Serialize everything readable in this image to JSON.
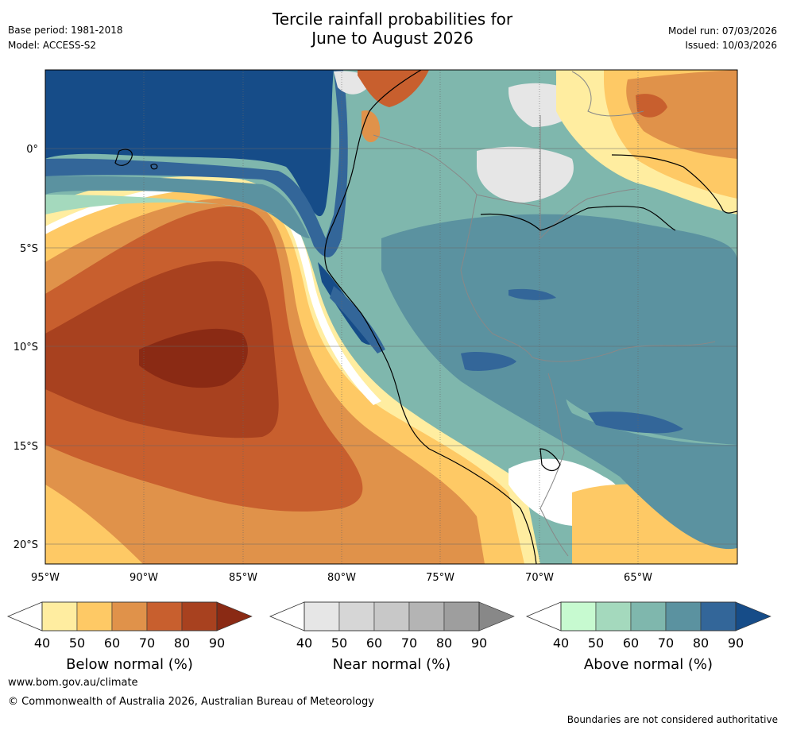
{
  "header": {
    "title_line1": "Tercile rainfall probabilities for",
    "title_line2": "June to August 2026",
    "base_period": "Base period: 1981-2018",
    "model": "Model: ACCESS-S2",
    "model_run": "Model run: 07/03/2026",
    "issued": "Issued: 10/03/2026"
  },
  "map": {
    "lon_labels": [
      "95°W",
      "90°W",
      "85°W",
      "80°W",
      "75°W",
      "70°W",
      "65°W"
    ],
    "lat_labels": [
      "0°",
      "5°S",
      "10°S",
      "15°S",
      "20°S"
    ],
    "colors": {
      "below": [
        "#ffeda0",
        "#fec965",
        "#e0924a",
        "#c85f2e",
        "#a8411f",
        "#8a2a14"
      ],
      "near": [
        "#e6e6e6",
        "#d6d6d6",
        "#c8c8c8",
        "#b4b4b4",
        "#9e9e9e",
        "#888888"
      ],
      "above": [
        "#c7fad0",
        "#a4d9bd",
        "#7fb7ad",
        "#5b92a0",
        "#336699",
        "#164c88"
      ],
      "ocean_neutral": "#ffffff",
      "coast": "#000000",
      "border": "#888888"
    }
  },
  "legend": {
    "below": {
      "title": "Below normal (%)",
      "ticks": [
        "40",
        "50",
        "60",
        "70",
        "80",
        "90"
      ]
    },
    "near": {
      "title": "Near normal (%)",
      "ticks": [
        "40",
        "50",
        "60",
        "70",
        "80",
        "90"
      ]
    },
    "above": {
      "title": "Above normal (%)",
      "ticks": [
        "40",
        "50",
        "60",
        "70",
        "80",
        "90"
      ]
    }
  },
  "footer": {
    "website": "www.bom.gov.au/climate",
    "copyright": "© Commonwealth of Australia 2026, Australian Bureau of Meteorology",
    "disclaimer": "Boundaries are not considered authoritative"
  }
}
